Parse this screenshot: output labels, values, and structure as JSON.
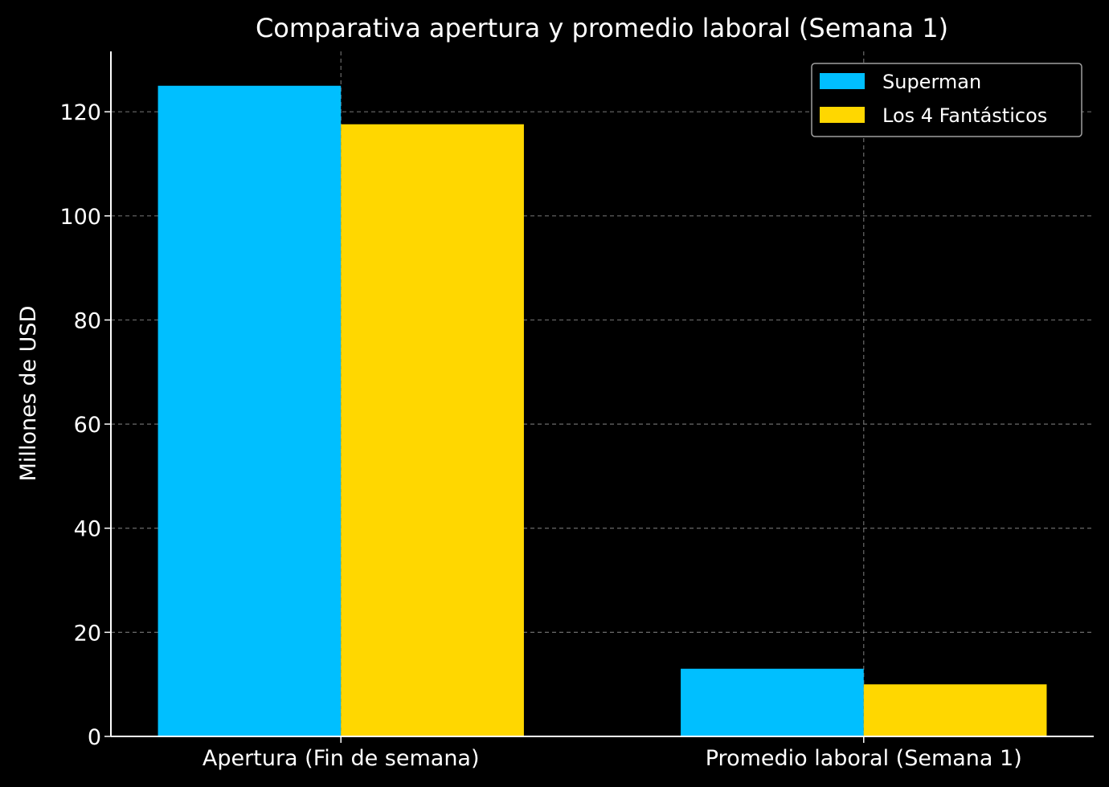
{
  "chart_data": {
    "type": "bar",
    "title": "Comparativa apertura y promedio laboral (Semana 1)",
    "xlabel": "",
    "ylabel": "Millones de USD",
    "categories": [
      "Apertura (Fin de semana)",
      "Promedio laboral (Semana 1)"
    ],
    "series": [
      {
        "name": "Superman",
        "values": [
          125.0,
          13.0
        ],
        "color": "#00BFFF"
      },
      {
        "name": "Los 4 Fantásticos",
        "values": [
          117.6,
          10.0
        ],
        "color": "#FFD700"
      }
    ],
    "ylim": [
      0,
      131.6
    ],
    "yticks": [
      0,
      20,
      40,
      60,
      80,
      100,
      120
    ],
    "grid": true,
    "legend_position": "top-right",
    "background": "#000000",
    "foreground": "#ffffff",
    "grid_color": "#6b6b6b"
  }
}
